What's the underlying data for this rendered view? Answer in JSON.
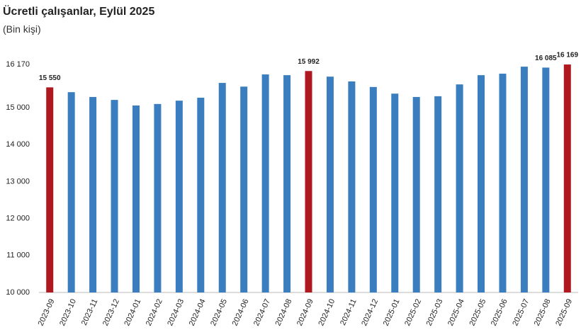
{
  "chart_data": {
    "type": "bar",
    "title": "Ücretli çalışanlar, Eylül 2025",
    "subtitle": "(Bin kişi)",
    "categories": [
      "2023-09",
      "2023-10",
      "2023-11",
      "2023-12",
      "2024-01",
      "2024-02",
      "2024-03",
      "2024-04",
      "2024-05",
      "2024-06",
      "2024-07",
      "2024-08",
      "2024-09",
      "2024-10",
      "2024-11",
      "2024-12",
      "2025-01",
      "2025-02",
      "2025-03",
      "2025-04",
      "2025-05",
      "2025-06",
      "2025-07",
      "2025-08",
      "2025-09"
    ],
    "values": [
      15550,
      15420,
      15290,
      15210,
      15060,
      15100,
      15190,
      15270,
      15670,
      15570,
      15900,
      15880,
      15992,
      15840,
      15710,
      15560,
      15380,
      15290,
      15310,
      15630,
      15880,
      15920,
      16110,
      16085,
      16169
    ],
    "value_labels": [
      "15 550",
      null,
      null,
      null,
      null,
      null,
      null,
      null,
      null,
      null,
      null,
      null,
      "15 992",
      null,
      null,
      null,
      null,
      null,
      null,
      null,
      null,
      null,
      null,
      "16 085",
      "16 169"
    ],
    "colors": [
      "#b0181f",
      "#3a7ebf",
      "#3a7ebf",
      "#3a7ebf",
      "#3a7ebf",
      "#3a7ebf",
      "#3a7ebf",
      "#3a7ebf",
      "#3a7ebf",
      "#3a7ebf",
      "#3a7ebf",
      "#3a7ebf",
      "#b0181f",
      "#3a7ebf",
      "#3a7ebf",
      "#3a7ebf",
      "#3a7ebf",
      "#3a7ebf",
      "#3a7ebf",
      "#3a7ebf",
      "#3a7ebf",
      "#3a7ebf",
      "#3a7ebf",
      "#3a7ebf",
      "#b0181f"
    ],
    "ylim": [
      10000,
      16170
    ],
    "yticks": [
      {
        "value": 10000,
        "label": "10 000"
      },
      {
        "value": 11000,
        "label": "11 000"
      },
      {
        "value": 12000,
        "label": "12 000"
      },
      {
        "value": 13000,
        "label": "13 000"
      },
      {
        "value": 14000,
        "label": "14 000"
      },
      {
        "value": 15000,
        "label": "15 000"
      },
      {
        "value": 16170,
        "label": "16 170"
      }
    ],
    "grid": false
  }
}
